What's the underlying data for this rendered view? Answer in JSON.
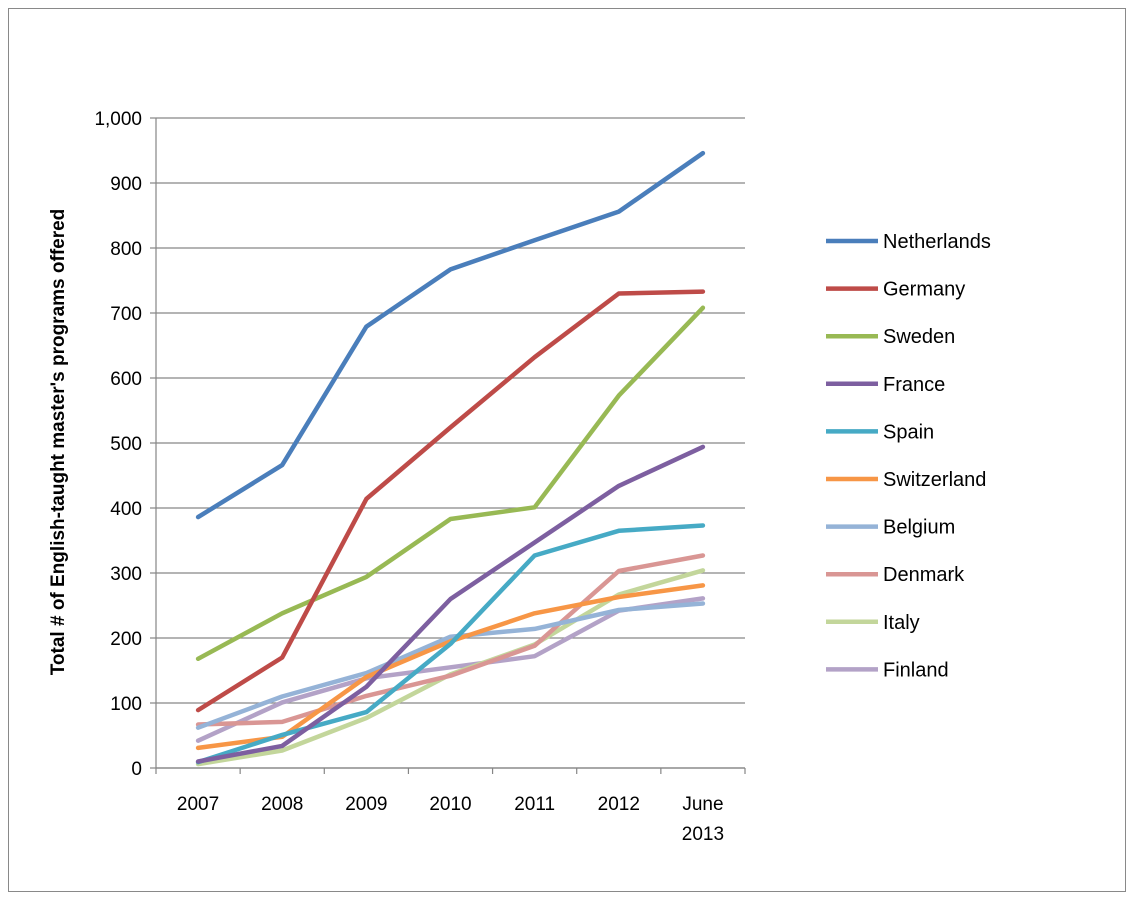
{
  "chart_data": {
    "type": "line",
    "title": "",
    "xlabel": "",
    "ylabel": "Total # of English-taught master's programs offered",
    "categories": [
      "2007",
      "2008",
      "2009",
      "2010",
      "2011",
      "2012",
      "June 2013"
    ],
    "category_lines": [
      [
        "2007"
      ],
      [
        "2008"
      ],
      [
        "2009"
      ],
      [
        "2010"
      ],
      [
        "2011"
      ],
      [
        "2012"
      ],
      [
        "June",
        "2013"
      ]
    ],
    "ylim": [
      0,
      1000
    ],
    "yticks": [
      0,
      100,
      200,
      300,
      400,
      500,
      600,
      700,
      800,
      900,
      1000
    ],
    "ytick_labels": [
      "0",
      "100",
      "200",
      "300",
      "400",
      "500",
      "600",
      "700",
      "800",
      "900",
      "1,000"
    ],
    "grid": "horizontal",
    "legend_position": "right",
    "series": [
      {
        "name": "Netherlands",
        "color": "#4a7ebb",
        "values": [
          386,
          466,
          679,
          767,
          812,
          856,
          946
        ]
      },
      {
        "name": "Germany",
        "color": "#be4b48",
        "values": [
          89,
          170,
          414,
          524,
          632,
          730,
          733
        ]
      },
      {
        "name": "Sweden",
        "color": "#98b954",
        "values": [
          168,
          238,
          294,
          383,
          401,
          573,
          708
        ]
      },
      {
        "name": "France",
        "color": "#7d5fa0",
        "values": [
          10,
          34,
          125,
          260,
          347,
          434,
          494
        ]
      },
      {
        "name": "Spain",
        "color": "#46aac5",
        "values": [
          9,
          51,
          86,
          191,
          327,
          365,
          373
        ]
      },
      {
        "name": "Switzerland",
        "color": "#f79646",
        "values": [
          31,
          48,
          140,
          195,
          238,
          263,
          281
        ]
      },
      {
        "name": "Belgium",
        "color": "#95b3d7",
        "values": [
          62,
          110,
          146,
          202,
          214,
          243,
          253
        ]
      },
      {
        "name": "Denmark",
        "color": "#d99694",
        "values": [
          67,
          71,
          111,
          142,
          188,
          303,
          327
        ]
      },
      {
        "name": "Italy",
        "color": "#c3d69b",
        "values": [
          6,
          27,
          77,
          144,
          190,
          267,
          304
        ]
      },
      {
        "name": "Finland",
        "color": "#b3a2c7",
        "values": [
          42,
          101,
          138,
          155,
          172,
          242,
          261
        ]
      }
    ]
  }
}
